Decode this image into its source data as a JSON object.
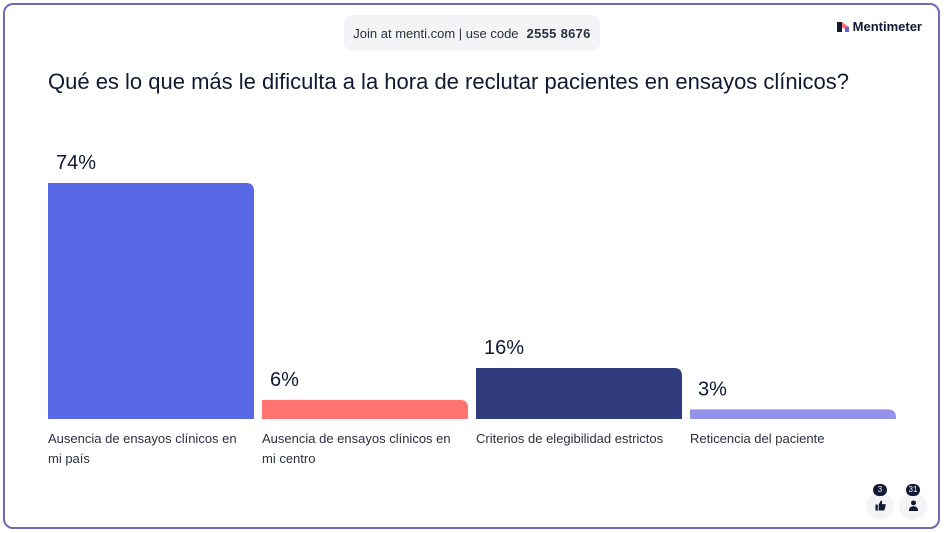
{
  "join": {
    "text": "Join at menti.com | use code",
    "code": "2555 8676"
  },
  "brand": {
    "name": "Mentimeter"
  },
  "question": "Qué es lo que más le dificulta a la hora de reclutar pacientes en ensayos clínicos?",
  "chart_data": {
    "type": "bar",
    "categories": [
      "Ausencia de ensayos clínicos en mi país",
      "Ausencia de ensayos clínicos en mi centro",
      "Criterios de elegibilidad estrictos",
      "Reticencia del paciente"
    ],
    "values": [
      74,
      6,
      16,
      3
    ],
    "value_labels": [
      "74%",
      "6%",
      "16%",
      "3%"
    ],
    "colors": [
      "#5769e7",
      "#ff7470",
      "#313c7e",
      "#9592ec"
    ],
    "ylim": [
      0,
      74
    ],
    "grid": false,
    "legend": "none"
  },
  "footer": {
    "reactions_icon": "thumbs-up-icon",
    "reactions_count": "3",
    "participants_icon": "person-icon",
    "participants_count": "31"
  }
}
